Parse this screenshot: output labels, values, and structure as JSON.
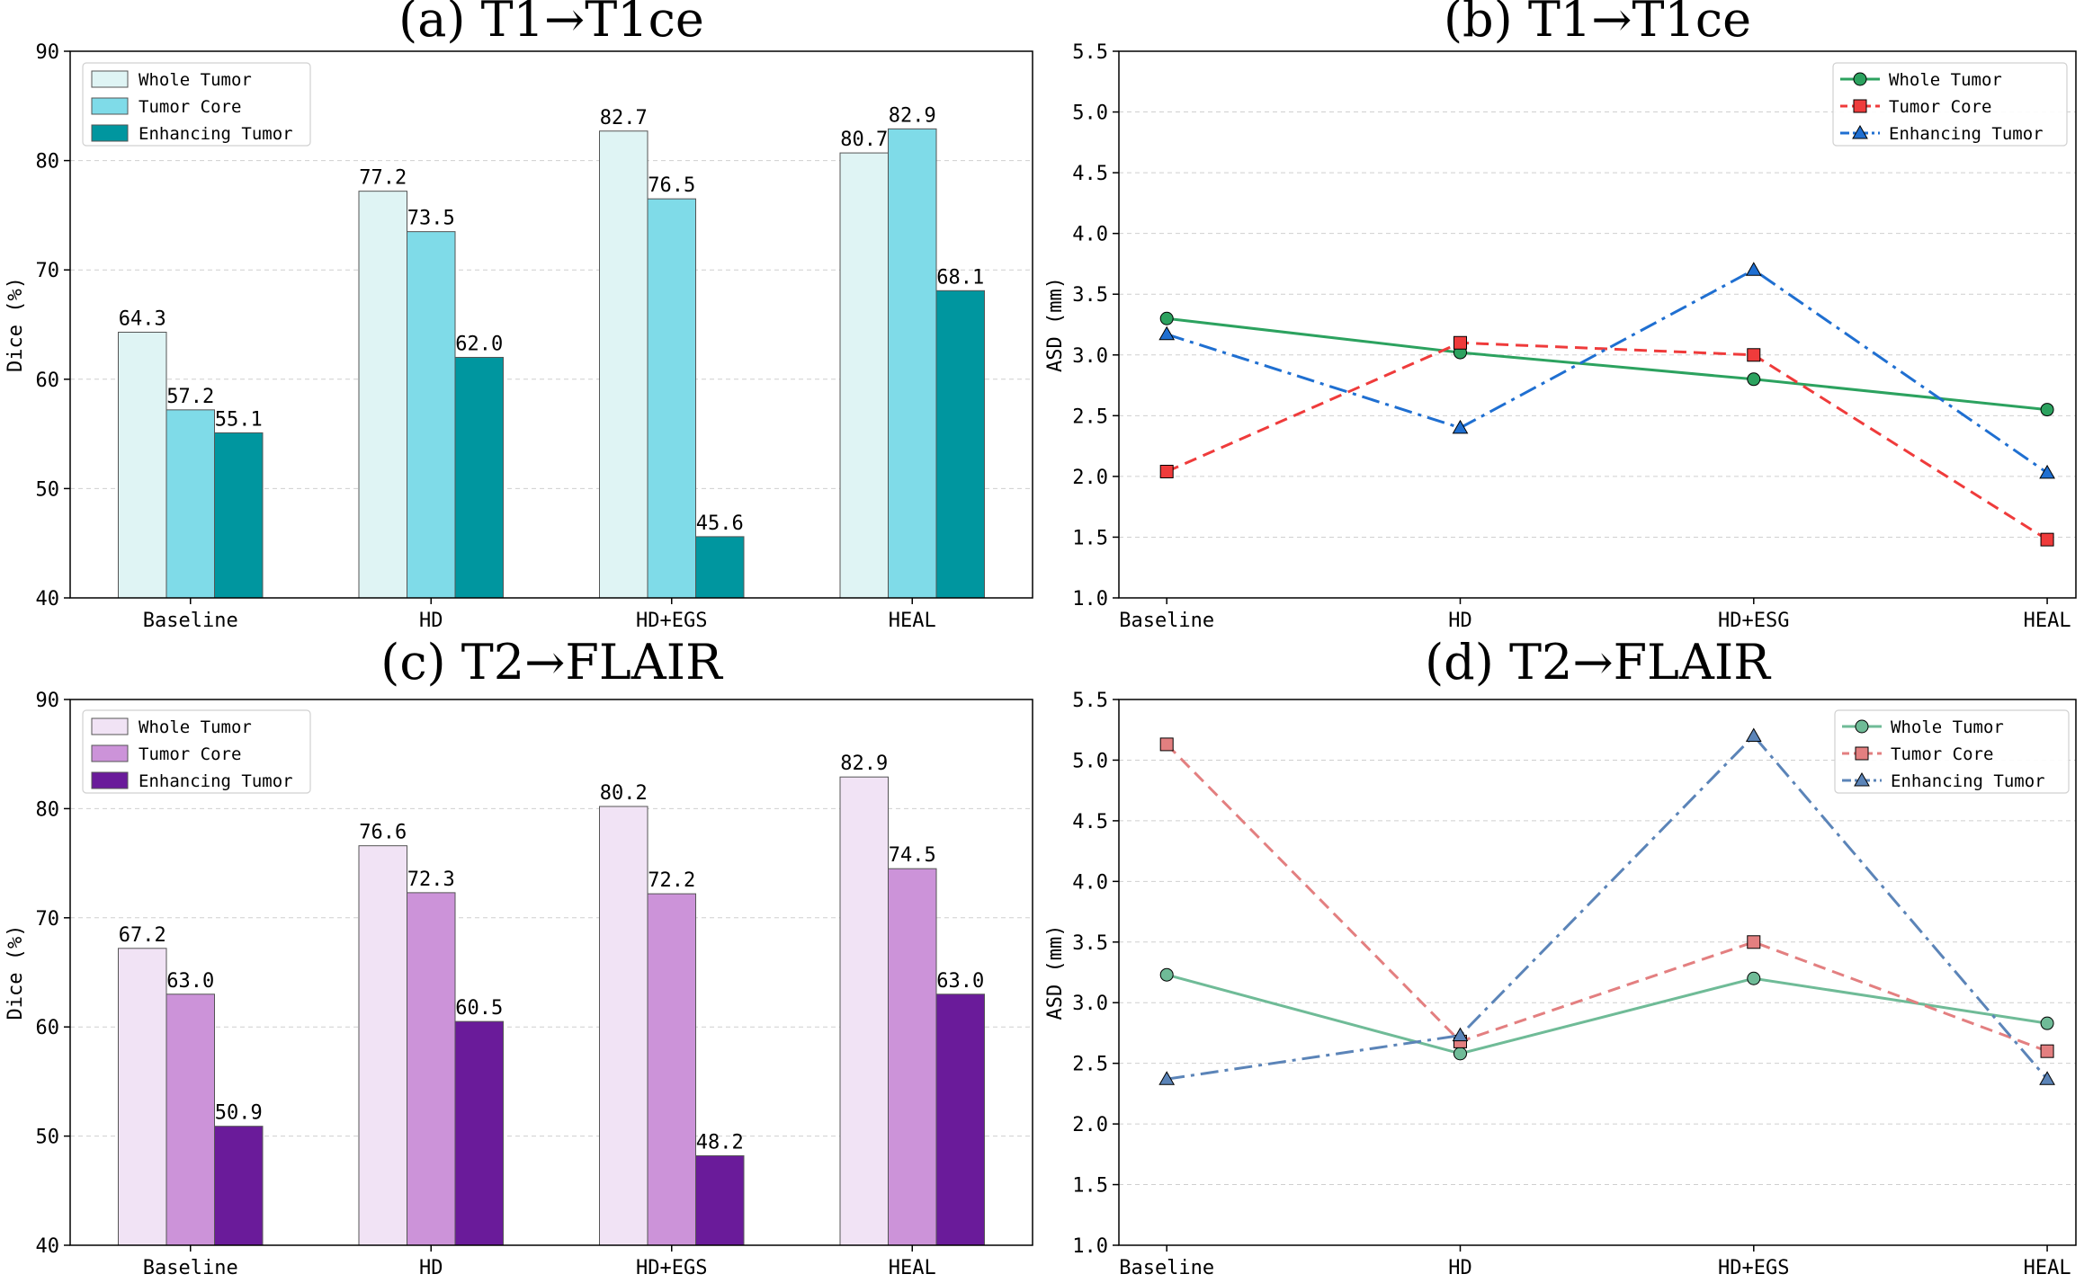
{
  "chart_data": [
    {
      "type": "bar",
      "title": "(a) T1→T1ce",
      "ylabel": "Dice (%)",
      "xlabel": "",
      "categories": [
        "Baseline",
        "HD",
        "HD+EGS",
        "HEAL"
      ],
      "ylim": [
        40,
        90
      ],
      "yticks": [
        "40",
        "50",
        "60",
        "70",
        "80",
        "90"
      ],
      "legend": "top-left",
      "series": [
        {
          "name": "Whole Tumor",
          "values": [
            64.3,
            77.2,
            82.7,
            80.7
          ],
          "labels": [
            "64.3",
            "77.2",
            "82.7",
            "80.7"
          ],
          "color": "#dff4f4"
        },
        {
          "name": "Tumor Core",
          "values": [
            57.2,
            73.5,
            76.5,
            82.9
          ],
          "labels": [
            "57.2",
            "73.5",
            "76.5",
            "82.9"
          ],
          "color": "#7fdbe8"
        },
        {
          "name": "Enhancing Tumor",
          "values": [
            55.1,
            62.0,
            45.6,
            68.1
          ],
          "labels": [
            "55.1",
            "62.0",
            "45.6",
            "68.1"
          ],
          "color": "#00969f"
        }
      ]
    },
    {
      "type": "line",
      "title": "(b) T1→T1ce",
      "ylabel": "ASD (mm)",
      "xlabel": "",
      "categories": [
        "Baseline",
        "HD",
        "HD+ESG",
        "HEAL"
      ],
      "ylim": [
        1.0,
        5.5
      ],
      "yticks": [
        "1.0",
        "1.5",
        "2.0",
        "2.5",
        "3.0",
        "3.5",
        "4.0",
        "4.5",
        "5.0",
        "5.5"
      ],
      "legend": "top-right",
      "series": [
        {
          "name": "Whole Tumor",
          "values": [
            3.3,
            3.02,
            2.8,
            2.55
          ],
          "color": "#2ca25f",
          "marker": "circle",
          "dash": ""
        },
        {
          "name": "Tumor Core",
          "values": [
            2.04,
            3.1,
            3.0,
            1.48
          ],
          "color": "#ef3b3b",
          "marker": "square",
          "dash": "14,8"
        },
        {
          "name": "Enhancing Tumor",
          "values": [
            3.17,
            2.4,
            3.7,
            2.03
          ],
          "color": "#1f6fd1",
          "marker": "triangle",
          "dash": "20,7,4,7"
        }
      ]
    },
    {
      "type": "bar",
      "title": "(c) T2→FLAIR",
      "ylabel": "Dice (%)",
      "xlabel": "",
      "categories": [
        "Baseline",
        "HD",
        "HD+EGS",
        "HEAL"
      ],
      "ylim": [
        40,
        90
      ],
      "yticks": [
        "40",
        "50",
        "60",
        "70",
        "80",
        "90"
      ],
      "legend": "top-left",
      "series": [
        {
          "name": "Whole Tumor",
          "values": [
            67.2,
            76.6,
            80.2,
            82.9
          ],
          "labels": [
            "67.2",
            "76.6",
            "80.2",
            "82.9"
          ],
          "color": "#f1e3f5"
        },
        {
          "name": "Tumor Core",
          "values": [
            63.0,
            72.3,
            72.2,
            74.5
          ],
          "labels": [
            "63.0",
            "72.3",
            "72.2",
            "74.5"
          ],
          "color": "#cc93d9"
        },
        {
          "name": "Enhancing Tumor",
          "values": [
            50.9,
            60.5,
            48.2,
            63.0
          ],
          "labels": [
            "50.9",
            "60.5",
            "48.2",
            "63.0"
          ],
          "color": "#6a1b9a"
        }
      ]
    },
    {
      "type": "line",
      "title": "(d) T2→FLAIR",
      "ylabel": "ASD (mm)",
      "xlabel": "",
      "categories": [
        "Baseline",
        "HD",
        "HD+EGS",
        "HEAL"
      ],
      "ylim": [
        1.0,
        5.5
      ],
      "yticks": [
        "1.0",
        "1.5",
        "2.0",
        "2.5",
        "3.0",
        "3.5",
        "4.0",
        "4.5",
        "5.0",
        "5.5"
      ],
      "legend": "top-right",
      "series": [
        {
          "name": "Whole Tumor",
          "values": [
            3.23,
            2.58,
            3.2,
            2.83
          ],
          "color": "#6fbb97",
          "marker": "circle",
          "dash": ""
        },
        {
          "name": "Tumor Core",
          "values": [
            5.13,
            2.68,
            3.5,
            2.6
          ],
          "color": "#e37f80",
          "marker": "square",
          "dash": "14,8"
        },
        {
          "name": "Enhancing Tumor",
          "values": [
            2.37,
            2.73,
            5.2,
            2.37
          ],
          "color": "#5b84b8",
          "marker": "triangle",
          "dash": "20,7,4,7"
        }
      ]
    }
  ]
}
